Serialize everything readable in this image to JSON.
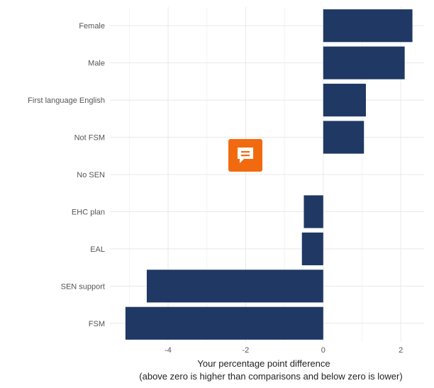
{
  "chart_data": {
    "type": "bar",
    "orientation": "horizontal",
    "categories": [
      "Female",
      "Male",
      "First language English",
      "Not FSM",
      "No SEN",
      "EHC plan",
      "EAL",
      "SEN support",
      "FSM"
    ],
    "values": [
      2.3,
      2.1,
      1.1,
      1.05,
      0,
      -0.5,
      -0.55,
      -4.55,
      -5.1
    ],
    "xlabel": "Your percentage point difference",
    "xlabel_note": "(above zero is higher than comparisons and below zero is lower)",
    "xlim": [
      -5.5,
      2.6
    ],
    "xticks": [
      -4,
      -2,
      0,
      2
    ],
    "xtick_labels": [
      "-4",
      "-2",
      "0",
      "2"
    ],
    "grid": true,
    "bar_color": "#1f3864"
  },
  "overlay": {
    "icon": "comment-icon",
    "color": "#f26a10"
  }
}
